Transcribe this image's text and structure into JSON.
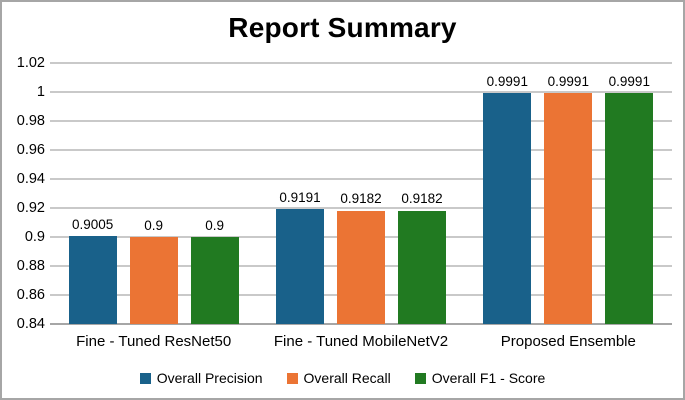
{
  "window": {
    "background": "#FFFFFF",
    "border_color": "#A6A6A6"
  },
  "chart_data": {
    "type": "bar",
    "title": "Report Summary",
    "categories": [
      "Fine - Tuned ResNet50",
      "Fine - Tuned MobileNetV2",
      "Proposed Ensemble"
    ],
    "series": [
      {
        "name": "Overall Precision",
        "color": "#19618A",
        "values": [
          0.9005,
          0.9191,
          0.9991
        ],
        "data_labels": [
          "0.9005",
          "0.9191",
          "0.9991"
        ]
      },
      {
        "name": "Overall Recall",
        "color": "#EB7434",
        "values": [
          0.9,
          0.9182,
          0.9991
        ],
        "data_labels": [
          "0.9",
          "0.9182",
          "0.9991"
        ]
      },
      {
        "name": "Overall F1 - Score",
        "color": "#217A21",
        "values": [
          0.9,
          0.9182,
          0.9991
        ],
        "data_labels": [
          "0.9",
          "0.9182",
          "0.9991"
        ]
      }
    ],
    "ylim": [
      0.84,
      1.02
    ],
    "yticks": [
      {
        "value": 1.02,
        "label": "1.02"
      },
      {
        "value": 1.0,
        "label": "1"
      },
      {
        "value": 0.98,
        "label": "0.98"
      },
      {
        "value": 0.96,
        "label": "0.96"
      },
      {
        "value": 0.94,
        "label": "0.94"
      },
      {
        "value": 0.92,
        "label": "0.92"
      },
      {
        "value": 0.9,
        "label": "0.9"
      },
      {
        "value": 0.88,
        "label": "0.88"
      },
      {
        "value": 0.86,
        "label": "0.86"
      },
      {
        "value": 0.84,
        "label": "0.84"
      }
    ],
    "grid": true,
    "grid_color": "#C9C9C9",
    "axis_color": "#A6A6A6",
    "legend_position": "bottom",
    "xlabel": "",
    "ylabel": ""
  }
}
